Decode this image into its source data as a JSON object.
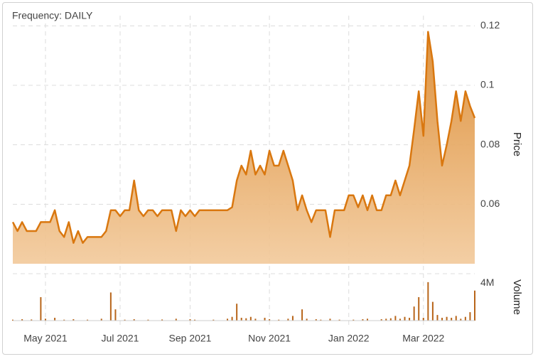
{
  "chart_data": [
    {
      "type": "area",
      "title": "Frequency: DAILY",
      "y_label": "Price",
      "color": "#d9770f",
      "grid": true,
      "categories": [
        null,
        null,
        null,
        null,
        null,
        null,
        null,
        "May 2021",
        null,
        null,
        null,
        null,
        null,
        null,
        null,
        null,
        null,
        null,
        null,
        null,
        null,
        null,
        null,
        "Jul 2021",
        null,
        null,
        null,
        null,
        null,
        null,
        null,
        null,
        null,
        null,
        null,
        null,
        null,
        null,
        "Sep 2021",
        null,
        null,
        null,
        null,
        null,
        null,
        null,
        null,
        null,
        null,
        null,
        null,
        null,
        null,
        null,
        null,
        "Nov 2021",
        null,
        null,
        null,
        null,
        null,
        null,
        null,
        null,
        null,
        null,
        null,
        null,
        null,
        null,
        null,
        null,
        "Jan 2022",
        null,
        null,
        null,
        null,
        null,
        null,
        null,
        null,
        null,
        null,
        null,
        null,
        null,
        null,
        null,
        "Mar 2022",
        null,
        null,
        null,
        null,
        null,
        null,
        null,
        null,
        null,
        null,
        null
      ],
      "values": [
        0.054,
        0.051,
        0.054,
        0.051,
        0.051,
        0.051,
        0.054,
        0.054,
        0.054,
        0.058,
        0.051,
        0.049,
        0.054,
        0.047,
        0.051,
        0.047,
        0.049,
        0.049,
        0.049,
        0.049,
        0.051,
        0.058,
        0.058,
        0.056,
        0.058,
        0.058,
        0.068,
        0.058,
        0.056,
        0.058,
        0.058,
        0.056,
        0.058,
        0.058,
        0.058,
        0.051,
        0.058,
        0.056,
        0.058,
        0.056,
        0.058,
        0.058,
        0.058,
        0.058,
        0.058,
        0.058,
        0.058,
        0.059,
        0.068,
        0.073,
        0.07,
        0.078,
        0.07,
        0.073,
        0.07,
        0.078,
        0.073,
        0.073,
        0.078,
        0.073,
        0.068,
        0.058,
        0.063,
        0.058,
        0.054,
        0.058,
        0.058,
        0.058,
        0.049,
        0.058,
        0.058,
        0.058,
        0.063,
        0.063,
        0.059,
        0.063,
        0.058,
        0.063,
        0.058,
        0.058,
        0.063,
        0.063,
        0.068,
        0.063,
        0.068,
        0.073,
        0.085,
        0.098,
        0.083,
        0.118,
        0.108,
        0.088,
        0.073,
        0.08,
        0.088,
        0.098,
        0.088,
        0.098,
        0.093,
        0.089
      ],
      "ylim": [
        0.04,
        0.122
      ],
      "yticks": [
        0.06,
        0.08,
        0.1,
        0.12
      ]
    },
    {
      "type": "bar",
      "y_label": "Volume",
      "color": "#b8651a",
      "values": [
        100000,
        0,
        150000,
        0,
        120000,
        0,
        2500000,
        200000,
        0,
        300000,
        0,
        100000,
        0,
        150000,
        0,
        0,
        100000,
        0,
        0,
        200000,
        0,
        3000000,
        1200000,
        0,
        100000,
        0,
        150000,
        0,
        0,
        100000,
        0,
        0,
        120000,
        0,
        0,
        200000,
        0,
        0,
        150000,
        100000,
        0,
        0,
        0,
        100000,
        0,
        0,
        200000,
        400000,
        1800000,
        300000,
        250000,
        400000,
        200000,
        0,
        300000,
        150000,
        0,
        100000,
        0,
        200000,
        500000,
        0,
        1200000,
        200000,
        0,
        150000,
        100000,
        0,
        200000,
        0,
        100000,
        0,
        0,
        100000,
        0,
        150000,
        200000,
        0,
        0,
        150000,
        200000,
        250000,
        500000,
        200000,
        400000,
        300000,
        1500000,
        2500000,
        300000,
        4100000,
        2000000,
        600000,
        300000,
        400000,
        300000,
        500000,
        200000,
        400000,
        900000,
        3200000
      ],
      "ylim": [
        0,
        5000000
      ],
      "yticks": [
        {
          "value": 4000000,
          "label": "4M"
        }
      ]
    }
  ]
}
